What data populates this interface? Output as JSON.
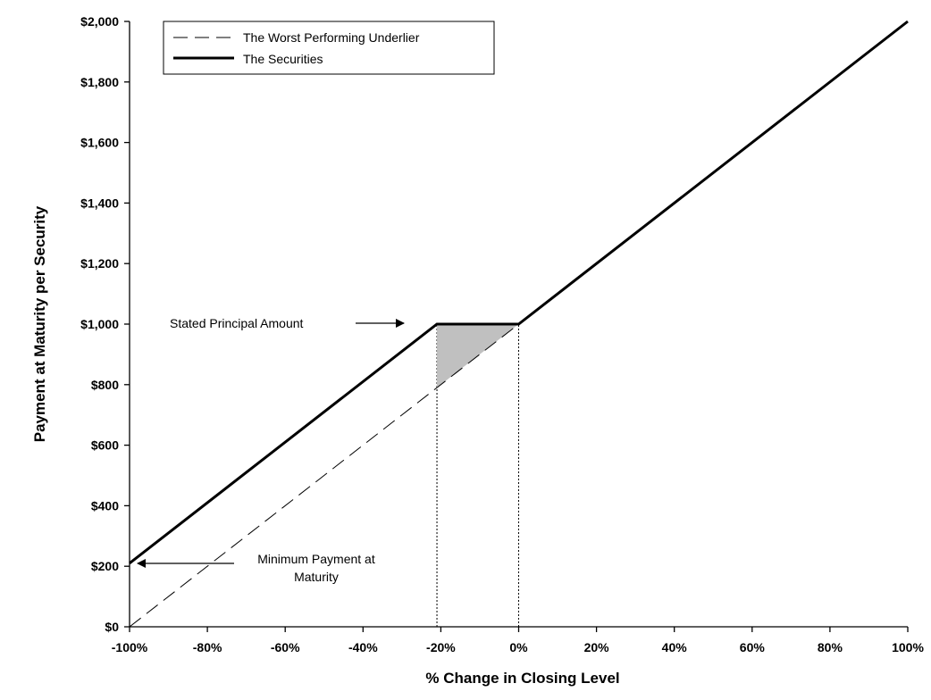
{
  "chart_data": {
    "type": "line",
    "xlabel": "% Change in Closing Level",
    "ylabel": "Payment at Maturity per Security",
    "xlim": [
      -100,
      100
    ],
    "ylim": [
      0,
      2000
    ],
    "x_ticks": [
      -100,
      -80,
      -60,
      -40,
      -20,
      0,
      20,
      40,
      60,
      80,
      100
    ],
    "x_tick_labels": [
      "-100%",
      "-80%",
      "-60%",
      "-40%",
      "-20%",
      "0%",
      "20%",
      "40%",
      "60%",
      "80%",
      "100%"
    ],
    "y_ticks": [
      0,
      200,
      400,
      600,
      800,
      1000,
      1200,
      1400,
      1600,
      1800,
      2000
    ],
    "y_tick_labels": [
      "$0",
      "$200",
      "$400",
      "$600",
      "$800",
      "$1,000",
      "$1,200",
      "$1,400",
      "$1,600",
      "$1,800",
      "$2,000"
    ],
    "series": [
      {
        "name": "The Worst Performing Underlier",
        "style": "dashed",
        "x": [
          -100,
          0
        ],
        "y": [
          0,
          1000
        ]
      },
      {
        "name": "The Securities",
        "style": "solid-thick",
        "x": [
          -100,
          -21,
          0,
          100
        ],
        "y": [
          210,
          1000,
          1000,
          2000
        ]
      }
    ],
    "shaded_region": {
      "x": [
        -21,
        0,
        -21
      ],
      "y": [
        1000,
        1000,
        790
      ],
      "color": "#c0c0c0"
    },
    "reference_lines": [
      {
        "x": -21,
        "y_from": 0,
        "y_to": 1000,
        "style": "dotted"
      },
      {
        "x": 0,
        "y_from": 0,
        "y_to": 1000,
        "style": "dotted"
      }
    ],
    "annotations": [
      {
        "text": "Stated Principal Amount",
        "arrow_to": [
          -21,
          1000
        ]
      },
      {
        "text_lines": [
          "Minimum Payment at",
          "Maturity"
        ],
        "arrow_to": [
          -100,
          210
        ]
      }
    ],
    "legend_placement": "top-left",
    "grid": false
  }
}
